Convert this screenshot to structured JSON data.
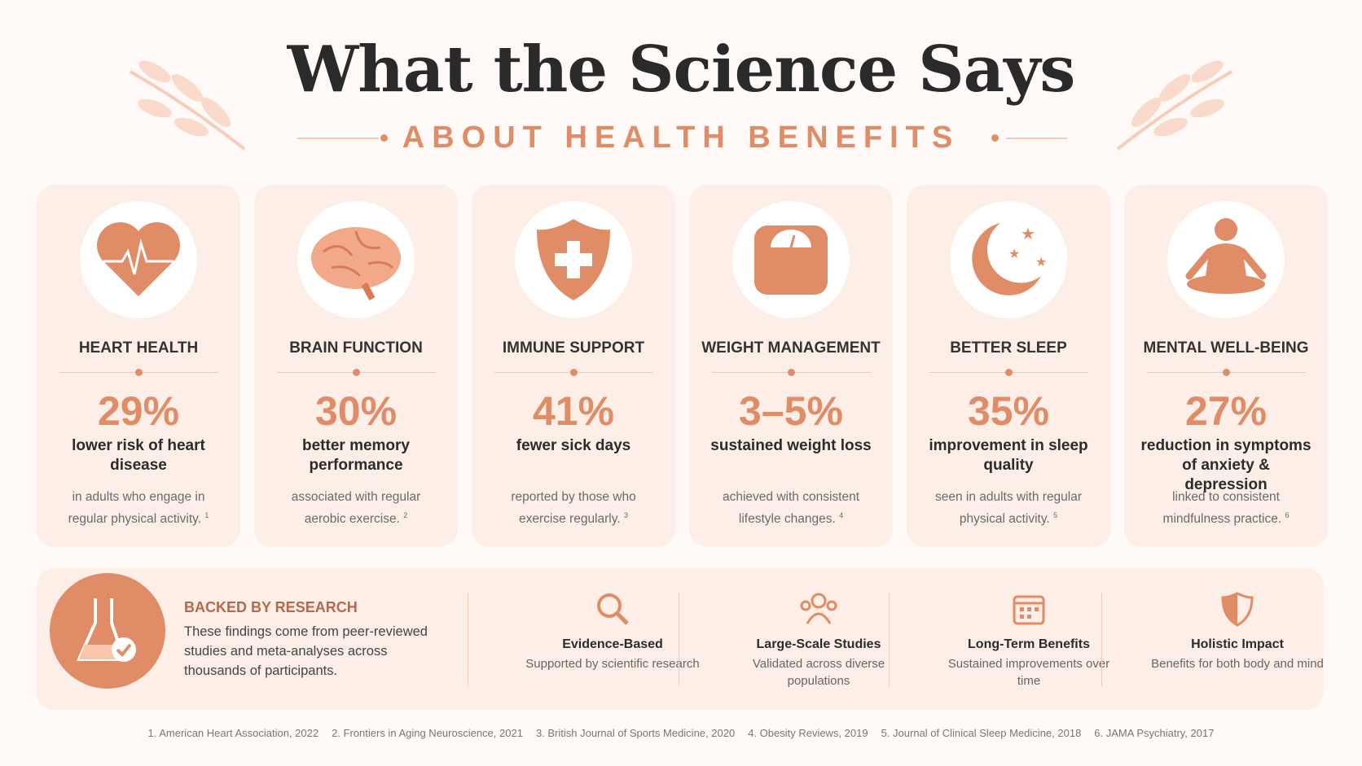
{
  "header": {
    "title": "What the Science Says",
    "subtitle": "ABOUT HEALTH BENEFITS"
  },
  "cards": [
    {
      "title": "HEART HEALTH",
      "stat": "29%",
      "headline": "lower risk of heart disease",
      "detail": "in adults who engage in regular physical activity.",
      "note": "1"
    },
    {
      "title": "BRAIN FUNCTION",
      "stat": "30%",
      "headline": "better memory performance",
      "detail": "associated with regular aerobic exercise.",
      "note": "2"
    },
    {
      "title": "IMMUNE SUPPORT",
      "stat": "41%",
      "headline": "fewer sick days",
      "detail": "reported by those who exercise regularly.",
      "note": "3"
    },
    {
      "title": "WEIGHT MANAGEMENT",
      "stat": "3–5%",
      "headline": "sustained weight loss",
      "detail": "achieved with consistent lifestyle changes.",
      "note": "4"
    },
    {
      "title": "BETTER SLEEP",
      "stat": "35%",
      "headline": "improvement in sleep quality",
      "detail": "seen in adults with regular physical activity.",
      "note": "5"
    },
    {
      "title": "MENTAL WELL-BEING",
      "stat": "27%",
      "headline": "reduction in symptoms of anxiety & depression",
      "detail": "linked to consistent mindfulness practice.",
      "note": "6"
    }
  ],
  "research": {
    "title": "BACKED BY RESEARCH",
    "text": "These findings come from peer-reviewed studies and meta-analyses across thousands of participants.",
    "features": [
      {
        "title": "Evidence-Based",
        "text": "Supported by scientific research"
      },
      {
        "title": "Large-Scale Studies",
        "text": "Validated across diverse populations"
      },
      {
        "title": "Long-Term Benefits",
        "text": "Sustained improvements over time"
      },
      {
        "title": "Holistic Impact",
        "text": "Benefits for both body and mind"
      }
    ]
  },
  "references": [
    "1. American Heart Association, 2022",
    "2. Frontiers in Aging Neuroscience, 2021",
    "3. British Journal of Sports Medicine, 2020",
    "4. Obesity Reviews, 2019",
    "5. Journal of Clinical Sleep Medicine, 2018",
    "6. JAMA Psychiatry, 2017"
  ]
}
